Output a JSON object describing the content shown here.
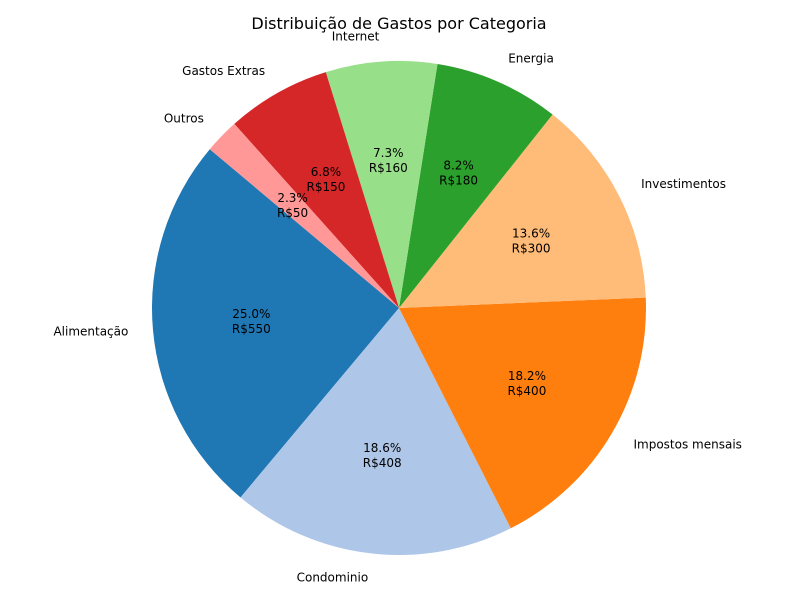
{
  "chart_data": {
    "type": "pie",
    "title": "Distribuição de Gastos por Categoria",
    "categories": [
      "Alimentação",
      "Condominio",
      "Impostos mensais",
      "Investimentos",
      "Energia",
      "Internet",
      "Gastos Extras",
      "Outros"
    ],
    "values": [
      550,
      408,
      400,
      300,
      180,
      160,
      150,
      50
    ],
    "percent_labels": [
      "25.0%",
      "18.6%",
      "18.2%",
      "13.6%",
      "8.2%",
      "7.3%",
      "6.8%",
      "2.3%"
    ],
    "value_labels": [
      "R$550",
      "R$408",
      "R$400",
      "R$300",
      "R$180",
      "R$160",
      "R$150",
      "R$50"
    ],
    "colors": [
      "#1f77b4",
      "#aec7e8",
      "#ff7f0e",
      "#ffbb78",
      "#2ca02c",
      "#98df8a",
      "#d62728",
      "#ff9896"
    ],
    "start_angle_deg": 140,
    "direction": "counterclockwise"
  }
}
